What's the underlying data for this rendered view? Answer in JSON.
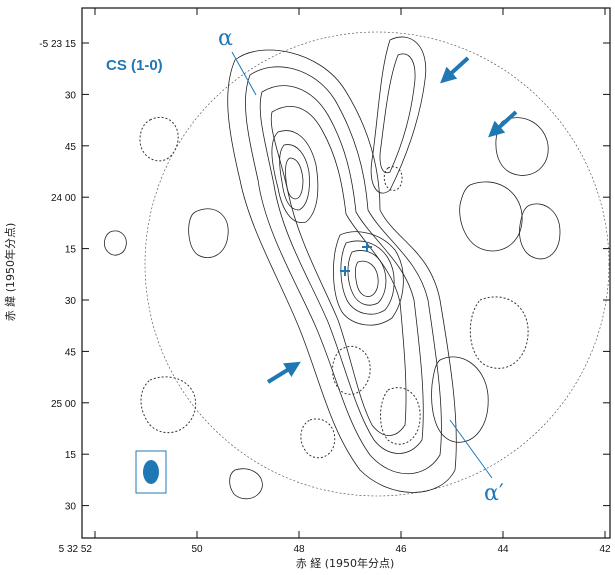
{
  "chart_data": {
    "type": "contour",
    "title": "CS (1-0)",
    "xlabel": "赤 経 (1950年分点)",
    "ylabel": "赤 緯 (1950年分点)",
    "x_ticks": [
      "5 32 52",
      "50",
      "48",
      "46",
      "44",
      "42"
    ],
    "y_ticks": [
      "-5 23 15",
      "30",
      "45",
      "24 00",
      "15",
      "30",
      "45",
      "25 00",
      "15",
      "30"
    ],
    "annotations": [
      "α",
      "α′"
    ],
    "markers": [
      {
        "type": "cross",
        "ra": "5 32 46.7",
        "dec": "-5 24 11"
      },
      {
        "type": "cross",
        "ra": "5 32 47.1",
        "dec": "-5 24 26"
      }
    ],
    "arrows": 4,
    "beam_shown": true,
    "accent_color": "#1f78b4",
    "contour_color": "#222222"
  }
}
